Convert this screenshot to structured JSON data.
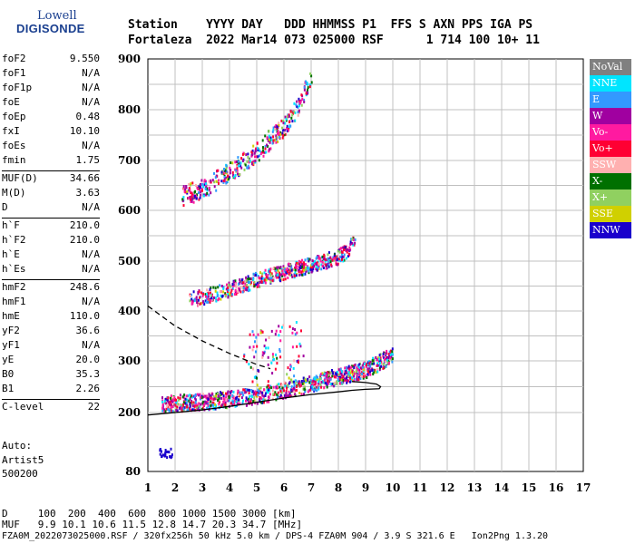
{
  "logo": {
    "line1": "Lowell",
    "line2": "DIGISONDE"
  },
  "header": {
    "line1": "Station    YYYY DAY   DDD HHMMSS P1  FFS S AXN PPS IGA PS",
    "line2": "Fortaleza  2022 Mar14 073 025000 RSF      1 714 100 10+ 11"
  },
  "params": [
    {
      "name": "foF2",
      "value": "9.550"
    },
    {
      "name": "foF1",
      "value": "N/A"
    },
    {
      "name": "foF1p",
      "value": "N/A"
    },
    {
      "name": "foE",
      "value": "N/A"
    },
    {
      "name": "foEp",
      "value": "0.48"
    },
    {
      "name": "fxI",
      "value": "10.10"
    },
    {
      "name": "foEs",
      "value": "N/A"
    },
    {
      "name": "fmin",
      "value": "1.75"
    },
    {
      "name": "MUF(D)",
      "value": "34.66"
    },
    {
      "name": "M(D)",
      "value": "3.63"
    },
    {
      "name": "D",
      "value": "N/A"
    },
    {
      "name": "h`F",
      "value": "210.0"
    },
    {
      "name": "h`F2",
      "value": "210.0"
    },
    {
      "name": "h`E",
      "value": "N/A"
    },
    {
      "name": "h`Es",
      "value": "N/A"
    },
    {
      "name": "hmF2",
      "value": "248.6"
    },
    {
      "name": "hmF1",
      "value": "N/A"
    },
    {
      "name": "hmE",
      "value": "110.0"
    },
    {
      "name": "yF2",
      "value": "36.6"
    },
    {
      "name": "yF1",
      "value": "N/A"
    },
    {
      "name": "yE",
      "value": "20.0"
    },
    {
      "name": "B0",
      "value": "35.3"
    },
    {
      "name": "B1",
      "value": "2.26"
    },
    {
      "name": "C-level",
      "value": "22"
    }
  ],
  "auto": {
    "line1": "Auto:",
    "line2": "Artist5",
    "line3": "500200"
  },
  "legend": [
    {
      "label": "NoVal",
      "color": "#808080"
    },
    {
      "label": "NNE",
      "color": "#00e5ff"
    },
    {
      "label": "E",
      "color": "#3399ff"
    },
    {
      "label": "W",
      "color": "#a000a0"
    },
    {
      "label": "Vo-",
      "color": "#ff1aa0"
    },
    {
      "label": "Vo+",
      "color": "#ff0033"
    },
    {
      "label": "SSW",
      "color": "#ffb0b0"
    },
    {
      "label": "X-",
      "color": "#007000"
    },
    {
      "label": "X+",
      "color": "#90d060"
    },
    {
      "label": "SSE",
      "color": "#d0d000"
    },
    {
      "label": "NNW",
      "color": "#1a00cc"
    }
  ],
  "footer": {
    "line1": "D     100  200  400  600  800 1000 1500 3000 [km]",
    "line2": "MUF   9.9 10.1 10.6 11.5 12.8 14.7 20.3 34.7 [MHz]",
    "line3": "FZA0M_2022073025000.RSF / 320fx256h 50 kHz 5.0 km / DPS-4 FZA0M 904 / 3.9 S 321.6 E   Ion2Png 1.3.20"
  },
  "chart_data": {
    "type": "scatter",
    "xlim": [
      1,
      17
    ],
    "ylim": [
      80,
      900
    ],
    "xticks": [
      1,
      2,
      3,
      4,
      5,
      6,
      7,
      8,
      9,
      10,
      11,
      12,
      13,
      14,
      15,
      16,
      17
    ],
    "yticks": [
      80,
      200,
      300,
      400,
      500,
      600,
      700,
      800,
      900
    ],
    "grid": true,
    "traces": [
      {
        "name": "O-trace F",
        "x": [
          1.5,
          2.0,
          3.0,
          4.0,
          5.0,
          6.0,
          7.0,
          8.0,
          9.0,
          9.5,
          10.0
        ],
        "y": [
          218,
          220,
          223,
          228,
          235,
          245,
          258,
          272,
          285,
          300,
          315
        ]
      },
      {
        "name": "2nd hop",
        "x": [
          2.5,
          3.0,
          4.0,
          5.0,
          6.0,
          7.0,
          8.0,
          8.6
        ],
        "y": [
          425,
          430,
          445,
          465,
          480,
          495,
          510,
          540
        ]
      },
      {
        "name": "3rd hop",
        "x": [
          2.2,
          3.0,
          4.0,
          5.0,
          6.0,
          6.5,
          7.0
        ],
        "y": [
          630,
          645,
          680,
          720,
          770,
          810,
          870
        ]
      }
    ],
    "profile_solid": {
      "x": [
        1.0,
        2.0,
        3.0,
        4.0,
        5.0,
        6.0,
        7.0,
        8.0,
        8.5,
        9.0,
        9.5,
        9.55,
        9.4,
        9.0,
        8.5
      ],
      "y": [
        195,
        200,
        205,
        212,
        220,
        228,
        235,
        240,
        243,
        245,
        246,
        250,
        255,
        258,
        260
      ]
    },
    "profile_dashed": {
      "x": [
        1.0,
        2.0,
        3.0,
        4.0,
        5.0,
        5.5
      ],
      "y": [
        410,
        370,
        340,
        315,
        293,
        285
      ]
    }
  }
}
